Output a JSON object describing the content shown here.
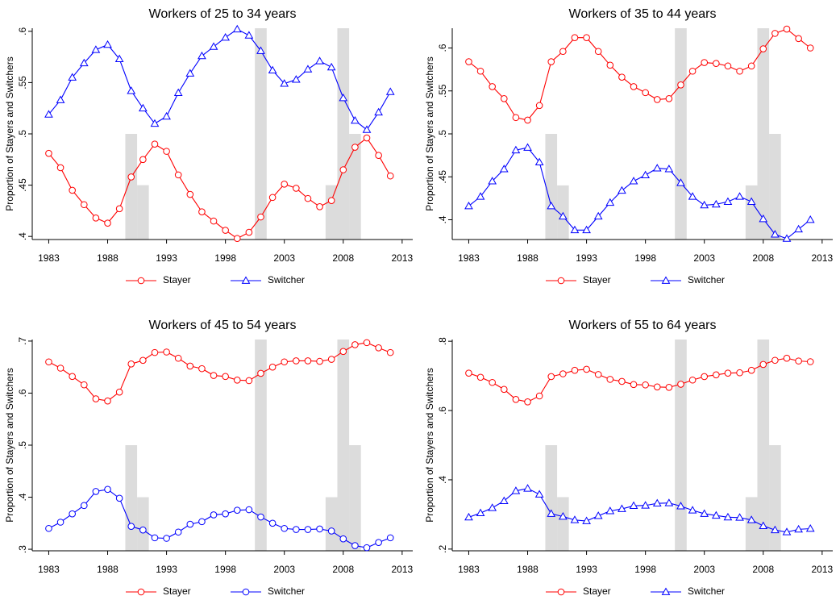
{
  "chart_data": [
    {
      "type": "line",
      "title": "Workers of 25 to 34 years",
      "ylabel": "Proportion of Stayers and Switchers",
      "x": [
        1983,
        1984,
        1985,
        1986,
        1987,
        1988,
        1989,
        1990,
        1991,
        1992,
        1993,
        1994,
        1995,
        1996,
        1997,
        1998,
        1999,
        2000,
        2001,
        2002,
        2003,
        2004,
        2005,
        2006,
        2007,
        2008,
        2009,
        2010,
        2011,
        2012
      ],
      "series": [
        {
          "name": "Stayer",
          "color": "#ff0000",
          "marker": "circle",
          "values": [
            0.481,
            0.467,
            0.445,
            0.431,
            0.418,
            0.413,
            0.427,
            0.458,
            0.475,
            0.49,
            0.483,
            0.46,
            0.441,
            0.424,
            0.415,
            0.406,
            0.398,
            0.404,
            0.419,
            0.438,
            0.451,
            0.447,
            0.437,
            0.429,
            0.435,
            0.465,
            0.487,
            0.496,
            0.479,
            0.459
          ]
        },
        {
          "name": "Switcher",
          "color": "#0000ff",
          "marker": "triangle",
          "values": [
            0.519,
            0.533,
            0.555,
            0.569,
            0.582,
            0.587,
            0.573,
            0.542,
            0.525,
            0.51,
            0.517,
            0.54,
            0.559,
            0.576,
            0.585,
            0.594,
            0.602,
            0.596,
            0.581,
            0.562,
            0.549,
            0.553,
            0.563,
            0.571,
            0.565,
            0.535,
            0.513,
            0.504,
            0.521,
            0.541
          ]
        }
      ],
      "shading": [
        {
          "x": [
            1989.5,
            1990.5
          ],
          "top": 0.5
        },
        {
          "x": [
            1990.5,
            1991.5
          ],
          "top": 0.45
        },
        {
          "x": [
            2000.5,
            2001.5
          ],
          "top": 0.603
        },
        {
          "x": [
            2006.5,
            2007.5
          ],
          "top": 0.45
        },
        {
          "x": [
            2007.5,
            2008.5
          ],
          "top": 0.603
        },
        {
          "x": [
            2008.5,
            2009.5
          ],
          "top": 0.5
        }
      ],
      "shading_color": "#dcdcdc",
      "xlim": [
        1981.6,
        2013.9
      ],
      "xticks": [
        1983,
        1988,
        1993,
        1998,
        2003,
        2008,
        2013
      ],
      "ylim": [
        0.397,
        0.603
      ],
      "yticks": [
        {
          "value": 0.4,
          "label": ".4"
        },
        {
          "value": 0.45,
          "label": ".45"
        },
        {
          "value": 0.5,
          "label": ".5"
        },
        {
          "value": 0.55,
          "label": ".55"
        },
        {
          "value": 0.6,
          "label": ".6"
        }
      ],
      "legend": "bottom"
    },
    {
      "type": "line",
      "title": "Workers of 35 to 44 years",
      "ylabel": "Proportion of Stayers and Switchers",
      "x": [
        1983,
        1984,
        1985,
        1986,
        1987,
        1988,
        1989,
        1990,
        1991,
        1992,
        1993,
        1994,
        1995,
        1996,
        1997,
        1998,
        1999,
        2000,
        2001,
        2002,
        2003,
        2004,
        2005,
        2006,
        2007,
        2008,
        2009,
        2010,
        2011,
        2012
      ],
      "series": [
        {
          "name": "Stayer",
          "color": "#ff0000",
          "marker": "circle",
          "values": [
            0.584,
            0.573,
            0.555,
            0.541,
            0.519,
            0.516,
            0.533,
            0.584,
            0.596,
            0.612,
            0.612,
            0.596,
            0.58,
            0.566,
            0.555,
            0.548,
            0.54,
            0.541,
            0.557,
            0.573,
            0.583,
            0.582,
            0.579,
            0.573,
            0.579,
            0.599,
            0.617,
            0.622,
            0.611,
            0.6
          ]
        },
        {
          "name": "Switcher",
          "color": "#0000ff",
          "marker": "triangle",
          "values": [
            0.416,
            0.427,
            0.445,
            0.459,
            0.481,
            0.484,
            0.467,
            0.416,
            0.404,
            0.388,
            0.388,
            0.404,
            0.42,
            0.434,
            0.445,
            0.452,
            0.46,
            0.459,
            0.443,
            0.427,
            0.417,
            0.418,
            0.421,
            0.427,
            0.421,
            0.401,
            0.383,
            0.378,
            0.389,
            0.4
          ]
        }
      ],
      "shading": [
        {
          "x": [
            1989.5,
            1990.5
          ],
          "top": 0.5
        },
        {
          "x": [
            1990.5,
            1991.5
          ],
          "top": 0.44
        },
        {
          "x": [
            2000.5,
            2001.5
          ],
          "top": 0.623
        },
        {
          "x": [
            2006.5,
            2007.5
          ],
          "top": 0.44
        },
        {
          "x": [
            2007.5,
            2008.5
          ],
          "top": 0.623
        },
        {
          "x": [
            2008.5,
            2009.5
          ],
          "top": 0.5
        }
      ],
      "shading_color": "#dcdcdc",
      "xlim": [
        1981.6,
        2013.9
      ],
      "xticks": [
        1983,
        1988,
        1993,
        1998,
        2003,
        2008,
        2013
      ],
      "ylim": [
        0.377,
        0.623
      ],
      "yticks": [
        {
          "value": 0.4,
          "label": ".4"
        },
        {
          "value": 0.45,
          "label": ".45"
        },
        {
          "value": 0.5,
          "label": ".5"
        },
        {
          "value": 0.55,
          "label": ".55"
        },
        {
          "value": 0.6,
          "label": ".6"
        }
      ],
      "legend": "bottom"
    },
    {
      "type": "line",
      "title": "Workers of 45 to 54 years",
      "ylabel": "Proportion of Stayers and Switchers",
      "x": [
        1983,
        1984,
        1985,
        1986,
        1987,
        1988,
        1989,
        1990,
        1991,
        1992,
        1993,
        1994,
        1995,
        1996,
        1997,
        1998,
        1999,
        2000,
        2001,
        2002,
        2003,
        2004,
        2005,
        2006,
        2007,
        2008,
        2009,
        2010,
        2011,
        2012
      ],
      "series": [
        {
          "name": "Stayer",
          "color": "#ff0000",
          "marker": "circle",
          "values": [
            0.66,
            0.648,
            0.632,
            0.616,
            0.589,
            0.585,
            0.602,
            0.656,
            0.663,
            0.678,
            0.679,
            0.667,
            0.652,
            0.647,
            0.634,
            0.632,
            0.625,
            0.624,
            0.638,
            0.65,
            0.66,
            0.662,
            0.662,
            0.661,
            0.665,
            0.68,
            0.693,
            0.697,
            0.687,
            0.678
          ]
        },
        {
          "name": "Switcher",
          "color": "#0000ff",
          "marker": "circle",
          "values": [
            0.34,
            0.352,
            0.368,
            0.384,
            0.411,
            0.415,
            0.398,
            0.344,
            0.337,
            0.322,
            0.321,
            0.333,
            0.348,
            0.353,
            0.366,
            0.368,
            0.375,
            0.376,
            0.362,
            0.35,
            0.34,
            0.338,
            0.338,
            0.339,
            0.335,
            0.32,
            0.307,
            0.303,
            0.313,
            0.322
          ]
        }
      ],
      "shading": [
        {
          "x": [
            1989.5,
            1990.5
          ],
          "top": 0.5
        },
        {
          "x": [
            1990.5,
            1991.5
          ],
          "top": 0.4
        },
        {
          "x": [
            2000.5,
            2001.5
          ],
          "top": 0.703
        },
        {
          "x": [
            2006.5,
            2007.5
          ],
          "top": 0.4
        },
        {
          "x": [
            2007.5,
            2008.5
          ],
          "top": 0.703
        },
        {
          "x": [
            2008.5,
            2009.5
          ],
          "top": 0.5
        }
      ],
      "shading_color": "#dcdcdc",
      "xlim": [
        1981.6,
        2013.9
      ],
      "xticks": [
        1983,
        1988,
        1993,
        1998,
        2003,
        2008,
        2013
      ],
      "ylim": [
        0.297,
        0.703
      ],
      "yticks": [
        {
          "value": 0.3,
          "label": ".3"
        },
        {
          "value": 0.4,
          "label": ".4"
        },
        {
          "value": 0.5,
          "label": ".5"
        },
        {
          "value": 0.6,
          "label": ".6"
        },
        {
          "value": 0.7,
          "label": ".7"
        }
      ],
      "legend": "bottom"
    },
    {
      "type": "line",
      "title": "Workers of 55 to 64 years",
      "ylabel": "Proportion of Stayers and Switchers",
      "x": [
        1983,
        1984,
        1985,
        1986,
        1987,
        1988,
        1989,
        1990,
        1991,
        1992,
        1993,
        1994,
        1995,
        1996,
        1997,
        1998,
        1999,
        2000,
        2001,
        2002,
        2003,
        2004,
        2005,
        2006,
        2007,
        2008,
        2009,
        2010,
        2011,
        2012
      ],
      "series": [
        {
          "name": "Stayer",
          "color": "#ff0000",
          "marker": "circle",
          "values": [
            0.708,
            0.696,
            0.681,
            0.661,
            0.632,
            0.625,
            0.642,
            0.698,
            0.706,
            0.716,
            0.719,
            0.704,
            0.69,
            0.684,
            0.675,
            0.674,
            0.668,
            0.667,
            0.676,
            0.688,
            0.698,
            0.703,
            0.708,
            0.709,
            0.716,
            0.733,
            0.745,
            0.751,
            0.743,
            0.741
          ]
        },
        {
          "name": "Switcher",
          "color": "#0000ff",
          "marker": "triangle",
          "values": [
            0.292,
            0.304,
            0.319,
            0.339,
            0.368,
            0.375,
            0.358,
            0.302,
            0.294,
            0.284,
            0.281,
            0.296,
            0.31,
            0.316,
            0.325,
            0.326,
            0.332,
            0.333,
            0.324,
            0.312,
            0.302,
            0.297,
            0.292,
            0.291,
            0.284,
            0.267,
            0.255,
            0.249,
            0.257,
            0.259
          ]
        }
      ],
      "shading": [
        {
          "x": [
            1989.5,
            1990.5
          ],
          "top": 0.5
        },
        {
          "x": [
            1990.5,
            1991.5
          ],
          "top": 0.35
        },
        {
          "x": [
            2000.5,
            2001.5
          ],
          "top": 0.805
        },
        {
          "x": [
            2006.5,
            2007.5
          ],
          "top": 0.35
        },
        {
          "x": [
            2007.5,
            2008.5
          ],
          "top": 0.805
        },
        {
          "x": [
            2008.5,
            2009.5
          ],
          "top": 0.5
        }
      ],
      "shading_color": "#dcdcdc",
      "xlim": [
        1981.6,
        2013.9
      ],
      "xticks": [
        1983,
        1988,
        1993,
        1998,
        2003,
        2008,
        2013
      ],
      "ylim": [
        0.195,
        0.805
      ],
      "yticks": [
        {
          "value": 0.2,
          "label": ".2"
        },
        {
          "value": 0.4,
          "label": ".4"
        },
        {
          "value": 0.6,
          "label": ".6"
        },
        {
          "value": 0.8,
          "label": ".8"
        }
      ],
      "legend": "bottom"
    }
  ]
}
